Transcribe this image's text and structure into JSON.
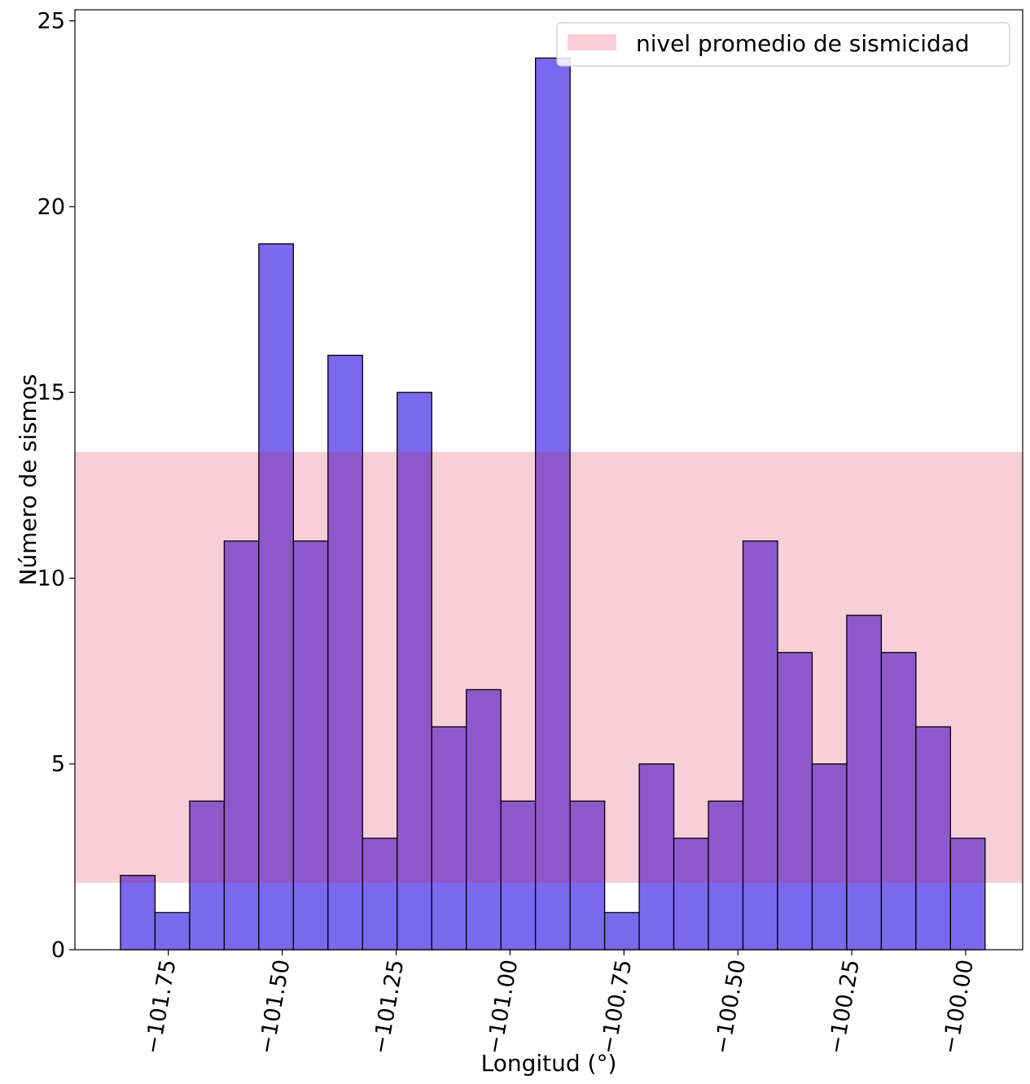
{
  "chart_data": {
    "type": "bar",
    "title": "",
    "xlabel": "Longitud (°)",
    "ylabel": "Número de sismos",
    "xlim": [
      -101.955,
      -99.875
    ],
    "ylim": [
      0,
      25.3
    ],
    "bin_start": -101.855,
    "bin_width": 0.0759,
    "values": [
      2,
      1,
      4,
      11,
      19,
      11,
      16,
      3,
      15,
      6,
      7,
      4,
      24,
      4,
      1,
      5,
      3,
      4,
      11,
      8,
      5,
      9,
      8,
      6,
      3
    ],
    "xticks": [
      -101.75,
      -101.5,
      -101.25,
      -101.0,
      -100.75,
      -100.5,
      -100.25,
      -100.0
    ],
    "xtick_labels": [
      "−101.75",
      "−101.50",
      "−101.25",
      "−101.00",
      "−100.75",
      "−100.50",
      "−100.25",
      "−100.00"
    ],
    "yticks": [
      0,
      5,
      10,
      15,
      20,
      25
    ],
    "ytick_labels": [
      "0",
      "5",
      "10",
      "15",
      "20",
      "25"
    ],
    "band": {
      "label": "nivel promedio de sismicidad",
      "y0": 1.8,
      "y1": 13.4,
      "color": "#f7cfd8"
    },
    "bar_color": "#7b68ee",
    "bar_edge_color": "#000000",
    "overlap_color": "#8e58cb",
    "grid": false,
    "legend_position": "top-right"
  }
}
